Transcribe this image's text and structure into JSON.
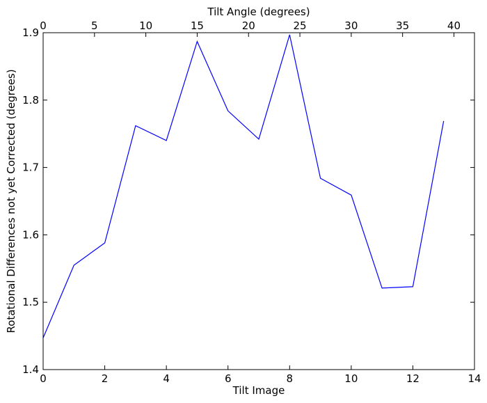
{
  "chart_data": {
    "type": "line",
    "xlabel": "Tilt Image",
    "ylabel": "Rotational Differences not yet Corrected (degrees)",
    "top_xlabel": "Tilt Angle (degrees)",
    "xlim": [
      0,
      14
    ],
    "ylim": [
      1.4,
      1.9
    ],
    "top_xlim": [
      0,
      42
    ],
    "x_ticks": [
      0,
      2,
      4,
      6,
      8,
      10,
      12,
      14
    ],
    "y_ticks": [
      1.4,
      1.5,
      1.6,
      1.7,
      1.8,
      1.9
    ],
    "top_x_ticks": [
      0,
      5,
      10,
      15,
      20,
      25,
      30,
      35,
      40
    ],
    "x_tick_labels": [
      "0",
      "2",
      "4",
      "6",
      "8",
      "10",
      "12",
      "14"
    ],
    "y_tick_labels": [
      "1.4",
      "1.5",
      "1.6",
      "1.7",
      "1.8",
      "1.9"
    ],
    "top_x_tick_labels": [
      "0",
      "5",
      "10",
      "15",
      "20",
      "25",
      "30",
      "35",
      "40"
    ],
    "grid": false,
    "series": [
      {
        "color": "#0000ff",
        "x": [
          0,
          1,
          2,
          3,
          4,
          5,
          6,
          7,
          8,
          9,
          10,
          11,
          12,
          13
        ],
        "values": [
          1.447,
          1.555,
          1.588,
          1.762,
          1.74,
          1.887,
          1.784,
          1.742,
          1.897,
          1.684,
          1.659,
          1.521,
          1.523,
          1.769
        ]
      }
    ]
  }
}
